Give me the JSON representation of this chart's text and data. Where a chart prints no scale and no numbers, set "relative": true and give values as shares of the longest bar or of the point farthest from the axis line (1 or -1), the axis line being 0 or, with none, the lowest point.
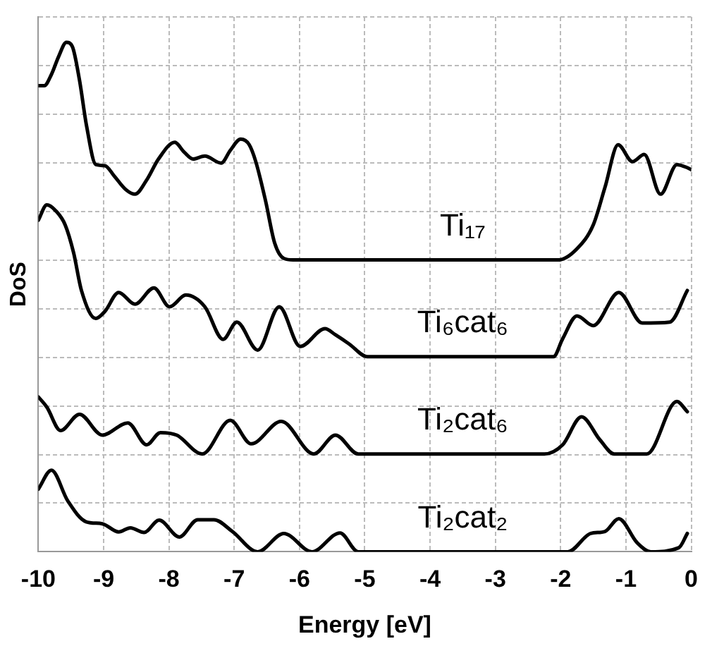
{
  "chart_data": {
    "type": "line",
    "xlabel": "Energy [eV]",
    "ylabel": "DoS",
    "relative": true,
    "grid": true,
    "legend": false,
    "marker": "none",
    "line_style": "solid",
    "xlim": [
      -10,
      0
    ],
    "xticks": [
      -10,
      -9,
      -8,
      -7,
      -6,
      -5,
      -4,
      -3,
      -2,
      -1,
      0
    ],
    "series": [
      {
        "name": "Ti₁₇",
        "color": "#000000",
        "x": [
          -10,
          -9.91,
          -9.8,
          -9.69,
          -9.57,
          -9.48,
          -9.37,
          -9.26,
          -9.12,
          -8.98,
          -8.84,
          -8.66,
          -8.52,
          -8.34,
          -8.16,
          -7.91,
          -7.77,
          -7.63,
          -7.45,
          -7.2,
          -7.06,
          -6.9,
          -6.77,
          -6.67,
          -6.52,
          -6.38,
          -6.24,
          -6.1,
          -2.04,
          -1.75,
          -1.5,
          -1.32,
          -1.12,
          -0.9,
          -0.72,
          -0.47,
          -0.22,
          -0.06,
          0
        ],
        "values": [
          0.915,
          0.915,
          0.937,
          0.972,
          1.0,
          0.992,
          0.926,
          0.835,
          0.76,
          0.758,
          0.738,
          0.711,
          0.702,
          0.73,
          0.771,
          0.804,
          0.785,
          0.771,
          0.777,
          0.763,
          0.788,
          0.81,
          0.799,
          0.766,
          0.689,
          0.606,
          0.576,
          0.573,
          0.573,
          0.595,
          0.642,
          0.716,
          0.799,
          0.766,
          0.78,
          0.702,
          0.76,
          0.754,
          0.75
        ]
      },
      {
        "name": "Ti₆cat₆",
        "color": "#000000",
        "x": [
          -10,
          -9.87,
          -9.73,
          -9.59,
          -9.46,
          -9.34,
          -9.12,
          -8.98,
          -8.77,
          -8.52,
          -8.23,
          -7.99,
          -7.74,
          -7.45,
          -7.17,
          -6.96,
          -6.64,
          -6.31,
          -5.99,
          -5.61,
          -5.45,
          -5.24,
          -4.96,
          -2.11,
          -1.97,
          -1.75,
          -1.5,
          -1.11,
          -0.75,
          -0.33,
          -0.06
        ],
        "values": [
          0.651,
          0.681,
          0.669,
          0.642,
          0.587,
          0.513,
          0.458,
          0.472,
          0.509,
          0.486,
          0.518,
          0.481,
          0.504,
          0.481,
          0.417,
          0.451,
          0.396,
          0.481,
          0.403,
          0.438,
          0.426,
          0.408,
          0.383,
          0.383,
          0.418,
          0.463,
          0.444,
          0.509,
          0.449,
          0.451,
          0.513
        ]
      },
      {
        "name": "Ti₂cat₆",
        "color": "#000000",
        "x": [
          -10,
          -9.87,
          -9.66,
          -9.37,
          -9.02,
          -8.63,
          -8.34,
          -8.13,
          -7.88,
          -7.49,
          -7.06,
          -6.74,
          -6.28,
          -5.78,
          -5.45,
          -5.1,
          -2.25,
          -1.97,
          -1.68,
          -1.4,
          -1.18,
          -0.68,
          -0.22,
          -0.06
        ],
        "values": [
          0.304,
          0.284,
          0.238,
          0.27,
          0.229,
          0.253,
          0.21,
          0.234,
          0.229,
          0.192,
          0.258,
          0.212,
          0.256,
          0.192,
          0.229,
          0.192,
          0.192,
          0.21,
          0.265,
          0.22,
          0.192,
          0.192,
          0.295,
          0.275
        ]
      },
      {
        "name": "Ti₂cat₂",
        "color": "#000000",
        "x": [
          -10,
          -9.8,
          -9.55,
          -9.27,
          -9.02,
          -8.77,
          -8.59,
          -8.38,
          -8.15,
          -7.84,
          -7.56,
          -7.31,
          -7.03,
          -6.64,
          -6.24,
          -5.81,
          -5.38,
          -5.1,
          -1.89,
          -1.54,
          -1.32,
          -1.11,
          -0.83,
          -0.62,
          -0.19,
          -0.06
        ],
        "values": [
          0.123,
          0.16,
          0.1,
          0.059,
          0.055,
          0.039,
          0.047,
          0.038,
          0.062,
          0.029,
          0.063,
          0.063,
          0.04,
          0.0,
          0.036,
          0.0,
          0.037,
          0.0,
          0.0,
          0.036,
          0.04,
          0.065,
          0.018,
          0.0,
          0.008,
          0.036
        ]
      }
    ]
  }
}
